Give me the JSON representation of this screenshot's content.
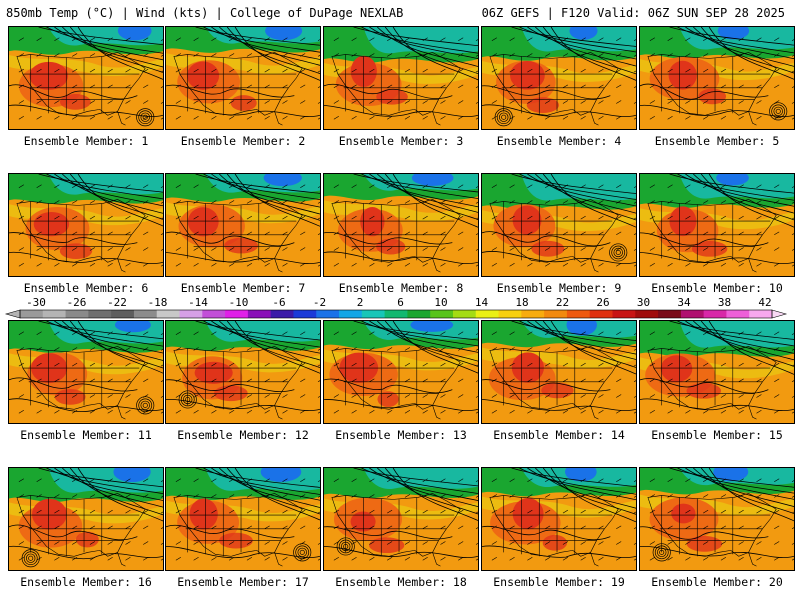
{
  "header": {
    "left": "850mb Temp (°C) | Wind (kts) | College of DuPage NEXLAB",
    "right": "06Z GEFS | F120 Valid: 06Z SUN SEP 28 2025"
  },
  "colorbar": {
    "ticks": [
      "-30",
      "-26",
      "-22",
      "-18",
      "-14",
      "-10",
      "-6",
      "-2",
      "2",
      "6",
      "10",
      "14",
      "18",
      "22",
      "26",
      "30",
      "34",
      "38",
      "42"
    ],
    "colors": [
      "#9a9a9a",
      "#b4b4b4",
      "#8a8a8a",
      "#6e6e6e",
      "#5e5e5e",
      "#8c8c8c",
      "#c8c8c8",
      "#d6a0e6",
      "#c24fd8",
      "#e020e8",
      "#8a10b8",
      "#3a1aa8",
      "#1a3ad8",
      "#1a72e8",
      "#12a6e6",
      "#18c6b8",
      "#12b870",
      "#1aa630",
      "#58c41a",
      "#a4dc14",
      "#eaf014",
      "#f8d010",
      "#f8ac10",
      "#f28a10",
      "#ee5a10",
      "#e03010",
      "#c81414",
      "#a00c0c",
      "#7a0a18",
      "#b01070",
      "#d828a8",
      "#ee60d8",
      "#f8a8ee"
    ]
  },
  "panels": [
    {
      "label": "Ensemble Member: 1"
    },
    {
      "label": "Ensemble Member: 2"
    },
    {
      "label": "Ensemble Member: 3"
    },
    {
      "label": "Ensemble Member: 4"
    },
    {
      "label": "Ensemble Member: 5"
    },
    {
      "label": "Ensemble Member: 6"
    },
    {
      "label": "Ensemble Member: 7"
    },
    {
      "label": "Ensemble Member: 8"
    },
    {
      "label": "Ensemble Member: 9"
    },
    {
      "label": "Ensemble Member: 10"
    },
    {
      "label": "Ensemble Member: 11"
    },
    {
      "label": "Ensemble Member: 12"
    },
    {
      "label": "Ensemble Member: 13"
    },
    {
      "label": "Ensemble Member: 14"
    },
    {
      "label": "Ensemble Member: 15"
    },
    {
      "label": "Ensemble Member: 16"
    },
    {
      "label": "Ensemble Member: 17"
    },
    {
      "label": "Ensemble Member: 18"
    },
    {
      "label": "Ensemble Member: 19"
    },
    {
      "label": "Ensemble Member: 20"
    }
  ],
  "palette": {
    "ocean": "#f29a10",
    "land_warm": "#ee6a14",
    "land_hot": "#e0341a",
    "cool_green": "#1aa630",
    "cool_teal": "#18b8a0",
    "cold_blue": "#1a72e8",
    "yellow": "#e8d812"
  }
}
